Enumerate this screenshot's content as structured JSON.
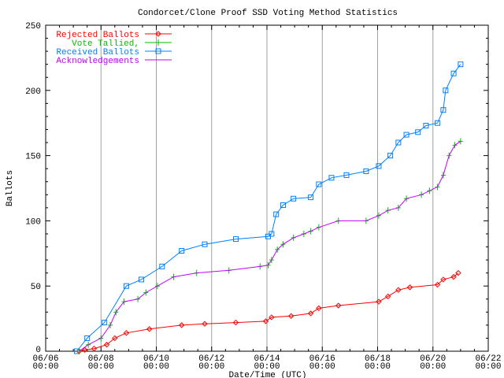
{
  "chart_data": {
    "type": "line",
    "title": "Condorcet/Clone Proof SSD Voting Method Statistics",
    "xlabel": "Date/Time (UTC)",
    "ylabel": "Ballots",
    "xlim": [
      "06/06 00:00",
      "06/22 00:00"
    ],
    "ylim": [
      0,
      250
    ],
    "x_ticks": [
      {
        "date": "06/06",
        "time": "00:00"
      },
      {
        "date": "06/08",
        "time": "00:00"
      },
      {
        "date": "06/10",
        "time": "00:00"
      },
      {
        "date": "06/12",
        "time": "00:00"
      },
      {
        "date": "06/14",
        "time": "00:00"
      },
      {
        "date": "06/16",
        "time": "00:00"
      },
      {
        "date": "06/18",
        "time": "00:00"
      },
      {
        "date": "06/20",
        "time": "00:00"
      },
      {
        "date": "06/22",
        "time": "00:00"
      }
    ],
    "y_ticks": [
      "0",
      "50",
      "100",
      "150",
      "200",
      "250"
    ],
    "grid": "vertical",
    "legend_position": "top-left",
    "series": [
      {
        "name": "Rejected Ballots",
        "color": "#ff0000",
        "marker": "diamond",
        "points": [
          [
            "06/07 05:00",
            0
          ],
          [
            "06/07 10:00",
            1
          ],
          [
            "06/07 18:00",
            2
          ],
          [
            "06/08 05:00",
            5
          ],
          [
            "06/08 12:00",
            10
          ],
          [
            "06/08 22:00",
            14
          ],
          [
            "06/09 18:00",
            17
          ],
          [
            "06/10 22:00",
            20
          ],
          [
            "06/11 18:00",
            21
          ],
          [
            "06/12 21:00",
            22
          ],
          [
            "06/13 23:00",
            23
          ],
          [
            "06/14 04:00",
            26
          ],
          [
            "06/14 21:00",
            27
          ],
          [
            "06/15 14:00",
            29
          ],
          [
            "06/15 21:00",
            33
          ],
          [
            "06/16 14:00",
            35
          ],
          [
            "06/18 01:00",
            38
          ],
          [
            "06/18 09:00",
            42
          ],
          [
            "06/18 18:00",
            47
          ],
          [
            "06/19 04:00",
            49
          ],
          [
            "06/20 04:00",
            51
          ],
          [
            "06/20 09:00",
            55
          ],
          [
            "06/20 18:00",
            57
          ],
          [
            "06/20 22:00",
            60
          ]
        ]
      },
      {
        "name": "Vote Tallied,",
        "color": "#00c000",
        "marker": "plus",
        "points": [
          [
            "06/07 05:00",
            0
          ],
          [
            "06/07 13:00",
            5
          ],
          [
            "06/08 00:00",
            10
          ],
          [
            "06/08 08:00",
            20
          ],
          [
            "06/08 13:00",
            30
          ],
          [
            "06/08 20:00",
            38
          ],
          [
            "06/09 08:00",
            40
          ],
          [
            "06/09 15:00",
            45
          ],
          [
            "06/10 01:00",
            50
          ],
          [
            "06/10 15:00",
            57
          ],
          [
            "06/11 11:00",
            60
          ],
          [
            "06/12 15:00",
            62
          ],
          [
            "06/13 18:00",
            65
          ],
          [
            "06/14 01:00",
            66
          ],
          [
            "06/14 04:00",
            70
          ],
          [
            "06/14 09:00",
            78
          ],
          [
            "06/14 14:00",
            82
          ],
          [
            "06/14 23:00",
            87
          ],
          [
            "06/15 08:00",
            90
          ],
          [
            "06/15 14:00",
            92
          ],
          [
            "06/15 21:00",
            95
          ],
          [
            "06/16 14:00",
            100
          ],
          [
            "06/17 14:00",
            100
          ],
          [
            "06/18 01:00",
            104
          ],
          [
            "06/18 09:00",
            108
          ],
          [
            "06/18 18:00",
            110
          ],
          [
            "06/19 01:00",
            117
          ],
          [
            "06/19 14:00",
            120
          ],
          [
            "06/19 21:00",
            123
          ],
          [
            "06/20 04:00",
            126
          ],
          [
            "06/20 09:00",
            135
          ],
          [
            "06/20 14:00",
            150
          ],
          [
            "06/20 19:00",
            158
          ],
          [
            "06/21 00:00",
            161
          ]
        ]
      },
      {
        "name": "Received Ballots",
        "color": "#0080ff",
        "marker": "square",
        "points": [
          [
            "06/07 03:00",
            0
          ],
          [
            "06/07 12:00",
            10
          ],
          [
            "06/08 03:00",
            22
          ],
          [
            "06/08 22:00",
            50
          ],
          [
            "06/09 11:00",
            55
          ],
          [
            "06/10 05:00",
            65
          ],
          [
            "06/10 22:00",
            77
          ],
          [
            "06/11 18:00",
            82
          ],
          [
            "06/12 21:00",
            86
          ],
          [
            "06/14 01:00",
            88
          ],
          [
            "06/14 04:00",
            90
          ],
          [
            "06/14 08:00",
            105
          ],
          [
            "06/14 14:00",
            112
          ],
          [
            "06/14 23:00",
            117
          ],
          [
            "06/15 14:00",
            118
          ],
          [
            "06/15 21:00",
            128
          ],
          [
            "06/16 08:00",
            133
          ],
          [
            "06/16 21:00",
            135
          ],
          [
            "06/17 14:00",
            138
          ],
          [
            "06/18 01:00",
            142
          ],
          [
            "06/18 11:00",
            150
          ],
          [
            "06/18 18:00",
            160
          ],
          [
            "06/19 01:00",
            166
          ],
          [
            "06/19 11:00",
            168
          ],
          [
            "06/19 18:00",
            173
          ],
          [
            "06/20 04:00",
            175
          ],
          [
            "06/20 09:00",
            185
          ],
          [
            "06/20 11:00",
            200
          ],
          [
            "06/20 18:00",
            213
          ],
          [
            "06/21 00:00",
            220
          ]
        ]
      },
      {
        "name": "Acknowledgements",
        "color": "#c000ff",
        "marker": "none",
        "same_as": "Vote Tallied,"
      }
    ]
  }
}
